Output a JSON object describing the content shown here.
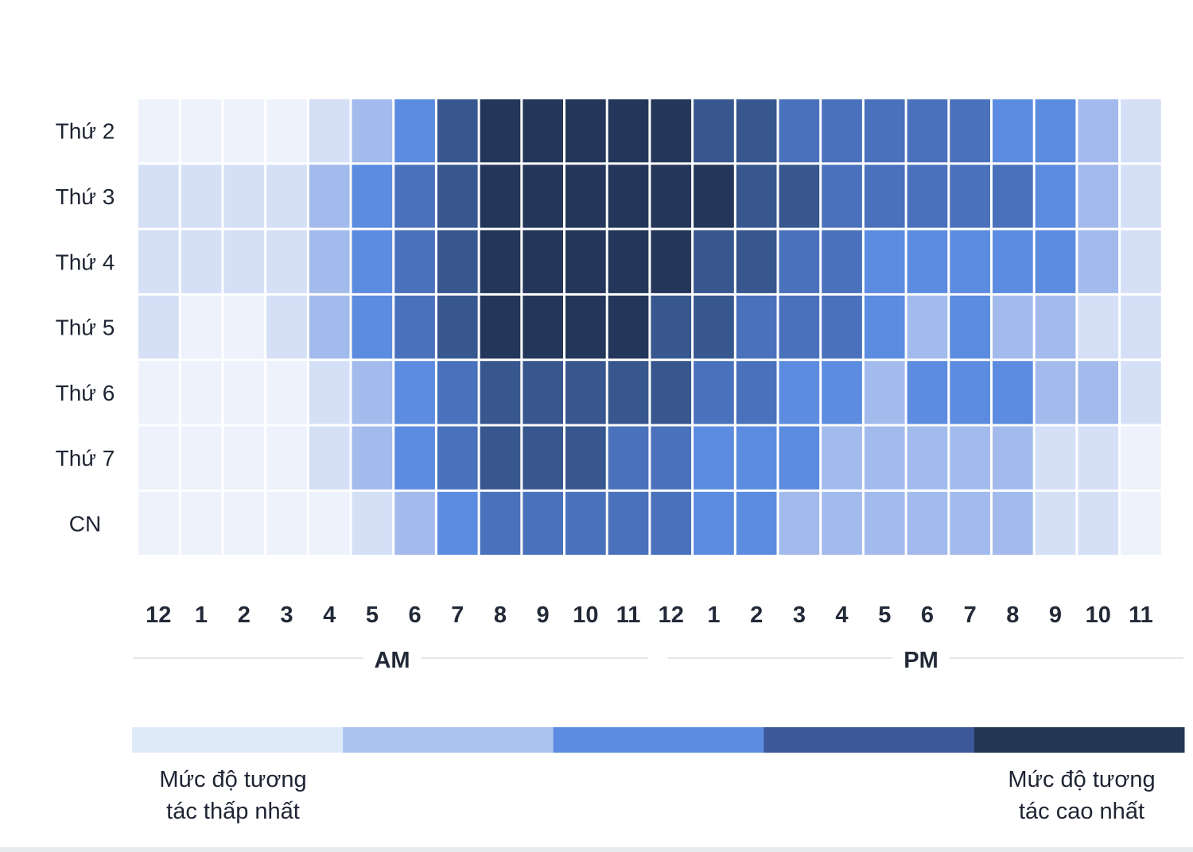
{
  "chart_data": {
    "type": "heatmap",
    "title": "",
    "rows": [
      "Thứ 2",
      "Thứ 3",
      "Thứ 4",
      "Thứ 5",
      "Thứ 6",
      "Thứ 7",
      "CN"
    ],
    "columns": [
      "12",
      "1",
      "2",
      "3",
      "4",
      "5",
      "6",
      "7",
      "8",
      "9",
      "10",
      "11",
      "12",
      "1",
      "2",
      "3",
      "4",
      "5",
      "6",
      "7",
      "8",
      "9",
      "10",
      "11"
    ],
    "periods": [
      {
        "label": "AM",
        "from_index": 0,
        "to_index": 11
      },
      {
        "label": "PM",
        "from_index": 12,
        "to_index": 23
      }
    ],
    "levels_scale": [
      0,
      1,
      2,
      3,
      4,
      5,
      6
    ],
    "values": [
      [
        0,
        0,
        0,
        0,
        1,
        2,
        3,
        5,
        6,
        6,
        6,
        6,
        6,
        5,
        5,
        4,
        4,
        4,
        4,
        4,
        3,
        3,
        2,
        1
      ],
      [
        1,
        1,
        1,
        1,
        2,
        3,
        4,
        5,
        6,
        6,
        6,
        6,
        6,
        6,
        5,
        5,
        4,
        4,
        4,
        4,
        4,
        3,
        2,
        1
      ],
      [
        1,
        1,
        1,
        1,
        2,
        3,
        4,
        5,
        6,
        6,
        6,
        6,
        6,
        5,
        5,
        4,
        4,
        3,
        3,
        3,
        3,
        3,
        2,
        1
      ],
      [
        1,
        0,
        0,
        1,
        2,
        3,
        4,
        5,
        6,
        6,
        6,
        6,
        5,
        5,
        4,
        4,
        4,
        3,
        2,
        3,
        2,
        2,
        1,
        1
      ],
      [
        0,
        0,
        0,
        0,
        1,
        2,
        3,
        4,
        5,
        5,
        5,
        5,
        5,
        4,
        4,
        3,
        3,
        2,
        3,
        3,
        3,
        2,
        2,
        1
      ],
      [
        0,
        0,
        0,
        0,
        1,
        2,
        3,
        4,
        5,
        5,
        5,
        4,
        4,
        3,
        3,
        3,
        2,
        2,
        2,
        2,
        2,
        1,
        1,
        0
      ],
      [
        0,
        0,
        0,
        0,
        0,
        1,
        2,
        3,
        4,
        4,
        4,
        4,
        4,
        3,
        3,
        2,
        2,
        2,
        2,
        2,
        2,
        1,
        1,
        0
      ]
    ],
    "level_colors": [
      "#edf2fc",
      "#d5e0f6",
      "#a3bbec",
      "#5c8ce0",
      "#4a72bc",
      "#37578e",
      "#243659"
    ],
    "legend": {
      "colors": [
        "#dfeaf9",
        "#abc3f1",
        "#5c8ce0",
        "#3c5898",
        "#233652"
      ],
      "low_label_line1": "Mức độ tương",
      "low_label_line2": "tác thấp nhất",
      "high_label_line1": "Mức độ tương",
      "high_label_line2": "tác cao nhất"
    }
  }
}
